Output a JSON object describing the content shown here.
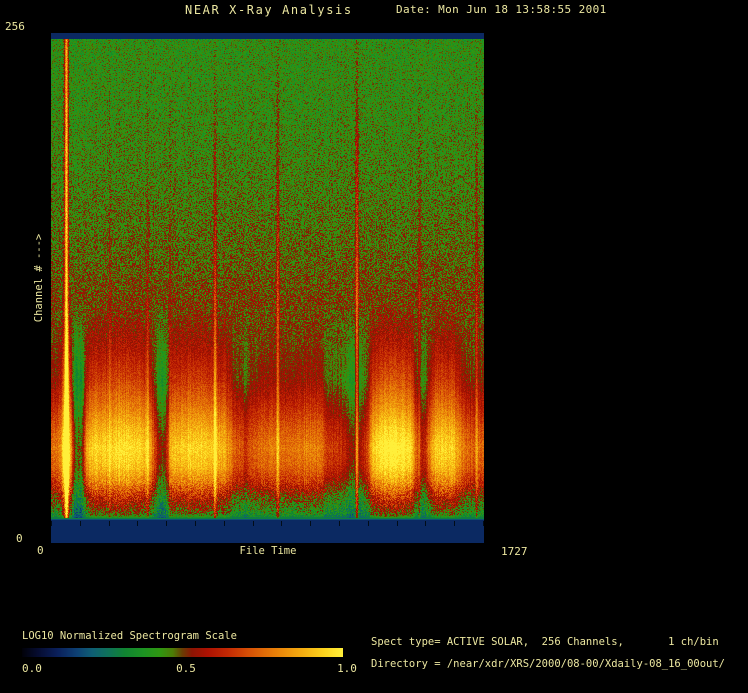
{
  "header": {
    "title": "NEAR X-Ray Analysis",
    "date_label": "Date: Mon Jun 18 13:58:55 2001"
  },
  "plot": {
    "y_axis": {
      "label": "Channel # --->",
      "max_label": "256",
      "min_label": "0"
    },
    "x_axis": {
      "label": "File Time",
      "min_label": "0",
      "max_label": "1727"
    }
  },
  "colorbar": {
    "label": "LOG10 Normalized Spectrogram Scale",
    "ticks": [
      "0.0",
      "0.5",
      "1.0"
    ]
  },
  "info": {
    "spect_type_line": "Spect type= ACTIVE SOLAR,  256 Channels,       1 ch/bin",
    "directory_line": "Directory = /near/xdr/XRS/2000/08-00/Xdaily-08_16_00out/"
  },
  "colors": {
    "background": "#000000",
    "text": "#ece7a0",
    "blanked_band": "#0d3560"
  },
  "chart_data": {
    "type": "heatmap",
    "title": "NEAR X-Ray Analysis",
    "xlabel": "File Time",
    "ylabel": "Channel #",
    "x_range": [
      0,
      1727
    ],
    "y_range": [
      0,
      256
    ],
    "channels": 256,
    "channels_per_bin": 1,
    "spect_type": "ACTIVE SOLAR",
    "scale_label": "LOG10 Normalized Spectrogram Scale",
    "scale_range": [
      0.0,
      1.0
    ],
    "colormap_stops": [
      [
        0.0,
        "#010108"
      ],
      [
        0.05,
        "#060c30"
      ],
      [
        0.11,
        "#0a1f5a"
      ],
      [
        0.17,
        "#0d3f74"
      ],
      [
        0.22,
        "#0e5f74"
      ],
      [
        0.27,
        "#0e7258"
      ],
      [
        0.32,
        "#108432"
      ],
      [
        0.38,
        "#1d9422"
      ],
      [
        0.43,
        "#2f9711"
      ],
      [
        0.47,
        "#4c7c06"
      ],
      [
        0.5,
        "#6a3c03"
      ],
      [
        0.53,
        "#8c1403"
      ],
      [
        0.58,
        "#ad1202"
      ],
      [
        0.64,
        "#c22803"
      ],
      [
        0.71,
        "#d75206"
      ],
      [
        0.79,
        "#e87f08"
      ],
      [
        0.87,
        "#f4ab10"
      ],
      [
        0.94,
        "#fcd31d"
      ],
      [
        1.0,
        "#ffef3a"
      ]
    ],
    "vertical_profile": [
      [
        0.0,
        0.13
      ],
      [
        0.01,
        0.13
      ],
      [
        0.012,
        0.42
      ],
      [
        0.15,
        0.43
      ],
      [
        0.3,
        0.45
      ],
      [
        0.45,
        0.48
      ],
      [
        0.55,
        0.52
      ],
      [
        0.62,
        0.58
      ],
      [
        0.68,
        0.66
      ],
      [
        0.73,
        0.76
      ],
      [
        0.78,
        0.88
      ],
      [
        0.815,
        0.94
      ],
      [
        0.85,
        0.9
      ],
      [
        0.88,
        0.8
      ],
      [
        0.905,
        0.66
      ],
      [
        0.925,
        0.56
      ],
      [
        0.94,
        0.5
      ],
      [
        0.949,
        0.42
      ],
      [
        0.953,
        0.3
      ],
      [
        0.956,
        0.13
      ],
      [
        1.0,
        0.13
      ]
    ],
    "column_profile": [
      [
        0.0,
        0.8
      ],
      [
        0.02,
        0.85
      ],
      [
        0.03,
        1.1
      ],
      [
        0.04,
        1.12
      ],
      [
        0.05,
        0.7
      ],
      [
        0.057,
        0.52
      ],
      [
        0.072,
        0.55
      ],
      [
        0.082,
        0.95
      ],
      [
        0.1,
        1.02
      ],
      [
        0.13,
        1.0
      ],
      [
        0.16,
        1.05
      ],
      [
        0.19,
        1.02
      ],
      [
        0.225,
        0.98
      ],
      [
        0.248,
        0.6
      ],
      [
        0.262,
        0.55
      ],
      [
        0.278,
        0.95
      ],
      [
        0.3,
        1.0
      ],
      [
        0.33,
        1.02
      ],
      [
        0.36,
        1.0
      ],
      [
        0.4,
        0.95
      ],
      [
        0.425,
        0.78
      ],
      [
        0.45,
        0.72
      ],
      [
        0.48,
        0.8
      ],
      [
        0.5,
        0.84
      ],
      [
        0.53,
        0.8
      ],
      [
        0.56,
        0.83
      ],
      [
        0.6,
        0.86
      ],
      [
        0.625,
        0.82
      ],
      [
        0.645,
        0.7
      ],
      [
        0.66,
        0.72
      ],
      [
        0.685,
        0.62
      ],
      [
        0.7,
        0.55
      ],
      [
        0.715,
        0.6
      ],
      [
        0.73,
        0.72
      ],
      [
        0.745,
        1.0
      ],
      [
        0.77,
        1.08
      ],
      [
        0.8,
        1.1
      ],
      [
        0.83,
        1.05
      ],
      [
        0.845,
        0.8
      ],
      [
        0.855,
        0.62
      ],
      [
        0.868,
        0.7
      ],
      [
        0.88,
        0.95
      ],
      [
        0.9,
        1.02
      ],
      [
        0.93,
        1.0
      ],
      [
        0.945,
        0.9
      ],
      [
        0.96,
        0.8
      ],
      [
        0.98,
        0.78
      ],
      [
        1.0,
        0.8
      ]
    ],
    "noise_profile": [
      [
        0.0,
        0.075
      ],
      [
        0.55,
        0.075
      ],
      [
        0.65,
        0.045
      ],
      [
        0.86,
        0.05
      ],
      [
        0.9,
        0.1
      ],
      [
        0.945,
        0.1
      ],
      [
        0.952,
        0.0
      ],
      [
        1.0,
        0.0
      ]
    ],
    "flare_columns": [
      {
        "x_frac": 0.0346,
        "amp": 0.5,
        "sigma": 1.3,
        "min_weight": 0.9
      },
      {
        "x_frac": 0.136,
        "amp": 0.07,
        "sigma": 1.0,
        "min_weight": 0.1
      },
      {
        "x_frac": 0.222,
        "amp": 0.08,
        "sigma": 1.0,
        "min_weight": 0.1
      },
      {
        "x_frac": 0.275,
        "amp": 0.07,
        "sigma": 1.0,
        "min_weight": 0.1
      },
      {
        "x_frac": 0.379,
        "amp": 0.22,
        "sigma": 1.1,
        "min_weight": 0.15
      },
      {
        "x_frac": 0.524,
        "amp": 0.24,
        "sigma": 1.1,
        "min_weight": 0.2
      },
      {
        "x_frac": 0.707,
        "amp": 0.3,
        "sigma": 1.1,
        "min_weight": 0.2
      },
      {
        "x_frac": 0.852,
        "amp": 0.14,
        "sigma": 1.0,
        "min_weight": 0.1
      },
      {
        "x_frac": 0.984,
        "amp": 0.14,
        "sigma": 1.0,
        "min_weight": 0.1
      }
    ],
    "blanked_channel_value": 0.13,
    "x_tick_count": 16,
    "tick_length": 5
  }
}
